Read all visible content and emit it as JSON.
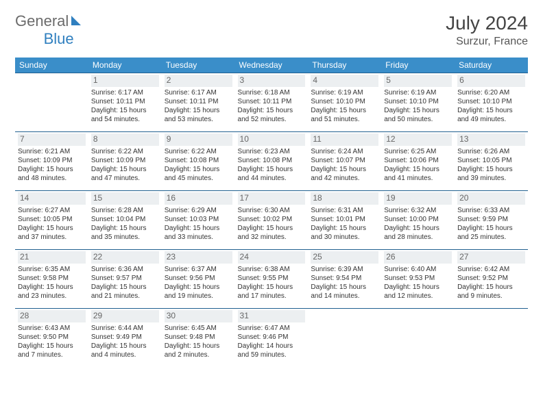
{
  "brand": {
    "part1": "General",
    "part2": "Blue"
  },
  "title": "July 2024",
  "location": "Surzur, France",
  "style": {
    "header_bg": "#3a8ec9",
    "header_fg": "#ffffff",
    "row_border": "#1f5f8f",
    "daynum_bg": "#eceff1",
    "daynum_fg": "#666666",
    "body_text": "#333333",
    "page_bg": "#ffffff",
    "title_fontsize": 28,
    "header_fontsize": 12,
    "cell_fontsize": 10
  },
  "weekdays": [
    "Sunday",
    "Monday",
    "Tuesday",
    "Wednesday",
    "Thursday",
    "Friday",
    "Saturday"
  ],
  "weeks": [
    [
      null,
      {
        "d": "1",
        "sr": "6:17 AM",
        "ss": "10:11 PM",
        "dl": "15 hours and 54 minutes."
      },
      {
        "d": "2",
        "sr": "6:17 AM",
        "ss": "10:11 PM",
        "dl": "15 hours and 53 minutes."
      },
      {
        "d": "3",
        "sr": "6:18 AM",
        "ss": "10:11 PM",
        "dl": "15 hours and 52 minutes."
      },
      {
        "d": "4",
        "sr": "6:19 AM",
        "ss": "10:10 PM",
        "dl": "15 hours and 51 minutes."
      },
      {
        "d": "5",
        "sr": "6:19 AM",
        "ss": "10:10 PM",
        "dl": "15 hours and 50 minutes."
      },
      {
        "d": "6",
        "sr": "6:20 AM",
        "ss": "10:10 PM",
        "dl": "15 hours and 49 minutes."
      }
    ],
    [
      {
        "d": "7",
        "sr": "6:21 AM",
        "ss": "10:09 PM",
        "dl": "15 hours and 48 minutes."
      },
      {
        "d": "8",
        "sr": "6:22 AM",
        "ss": "10:09 PM",
        "dl": "15 hours and 47 minutes."
      },
      {
        "d": "9",
        "sr": "6:22 AM",
        "ss": "10:08 PM",
        "dl": "15 hours and 45 minutes."
      },
      {
        "d": "10",
        "sr": "6:23 AM",
        "ss": "10:08 PM",
        "dl": "15 hours and 44 minutes."
      },
      {
        "d": "11",
        "sr": "6:24 AM",
        "ss": "10:07 PM",
        "dl": "15 hours and 42 minutes."
      },
      {
        "d": "12",
        "sr": "6:25 AM",
        "ss": "10:06 PM",
        "dl": "15 hours and 41 minutes."
      },
      {
        "d": "13",
        "sr": "6:26 AM",
        "ss": "10:05 PM",
        "dl": "15 hours and 39 minutes."
      }
    ],
    [
      {
        "d": "14",
        "sr": "6:27 AM",
        "ss": "10:05 PM",
        "dl": "15 hours and 37 minutes."
      },
      {
        "d": "15",
        "sr": "6:28 AM",
        "ss": "10:04 PM",
        "dl": "15 hours and 35 minutes."
      },
      {
        "d": "16",
        "sr": "6:29 AM",
        "ss": "10:03 PM",
        "dl": "15 hours and 33 minutes."
      },
      {
        "d": "17",
        "sr": "6:30 AM",
        "ss": "10:02 PM",
        "dl": "15 hours and 32 minutes."
      },
      {
        "d": "18",
        "sr": "6:31 AM",
        "ss": "10:01 PM",
        "dl": "15 hours and 30 minutes."
      },
      {
        "d": "19",
        "sr": "6:32 AM",
        "ss": "10:00 PM",
        "dl": "15 hours and 28 minutes."
      },
      {
        "d": "20",
        "sr": "6:33 AM",
        "ss": "9:59 PM",
        "dl": "15 hours and 25 minutes."
      }
    ],
    [
      {
        "d": "21",
        "sr": "6:35 AM",
        "ss": "9:58 PM",
        "dl": "15 hours and 23 minutes."
      },
      {
        "d": "22",
        "sr": "6:36 AM",
        "ss": "9:57 PM",
        "dl": "15 hours and 21 minutes."
      },
      {
        "d": "23",
        "sr": "6:37 AM",
        "ss": "9:56 PM",
        "dl": "15 hours and 19 minutes."
      },
      {
        "d": "24",
        "sr": "6:38 AM",
        "ss": "9:55 PM",
        "dl": "15 hours and 17 minutes."
      },
      {
        "d": "25",
        "sr": "6:39 AM",
        "ss": "9:54 PM",
        "dl": "15 hours and 14 minutes."
      },
      {
        "d": "26",
        "sr": "6:40 AM",
        "ss": "9:53 PM",
        "dl": "15 hours and 12 minutes."
      },
      {
        "d": "27",
        "sr": "6:42 AM",
        "ss": "9:52 PM",
        "dl": "15 hours and 9 minutes."
      }
    ],
    [
      {
        "d": "28",
        "sr": "6:43 AM",
        "ss": "9:50 PM",
        "dl": "15 hours and 7 minutes."
      },
      {
        "d": "29",
        "sr": "6:44 AM",
        "ss": "9:49 PM",
        "dl": "15 hours and 4 minutes."
      },
      {
        "d": "30",
        "sr": "6:45 AM",
        "ss": "9:48 PM",
        "dl": "15 hours and 2 minutes."
      },
      {
        "d": "31",
        "sr": "6:47 AM",
        "ss": "9:46 PM",
        "dl": "14 hours and 59 minutes."
      },
      null,
      null,
      null
    ]
  ],
  "labels": {
    "sunrise": "Sunrise: ",
    "sunset": "Sunset: ",
    "daylight": "Daylight: "
  }
}
